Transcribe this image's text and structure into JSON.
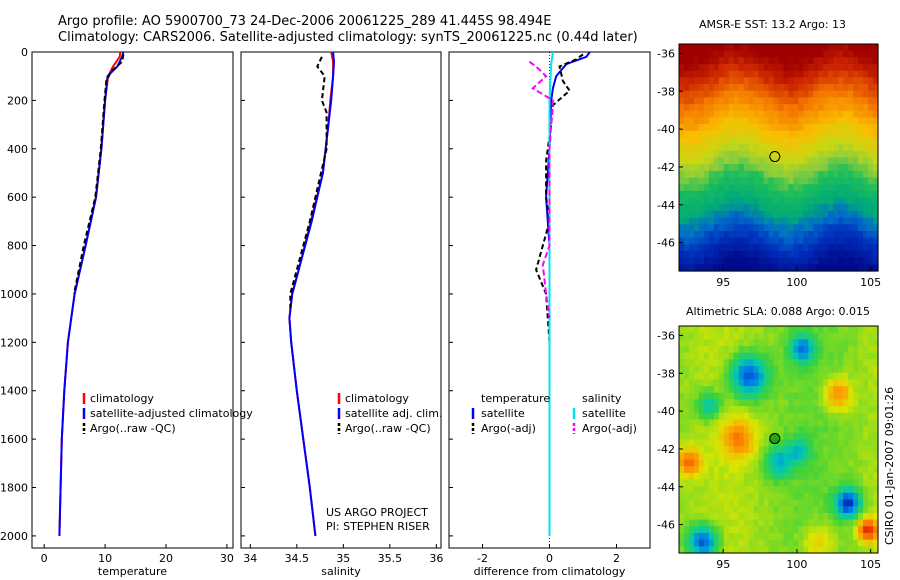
{
  "header": {
    "line1": "Argo profile: AO 5900700_73 24-Dec-2006 20061225_289 41.445S 98.494E",
    "line2": "Climatology: CARS2006. Satellite-adjusted climatology: synTS_20061225.nc (0.44d later)"
  },
  "colors": {
    "climatology": "#ff0000",
    "satellite": "#0000ff",
    "argo": "#000000",
    "sat_salinity": "#00e5ee",
    "argo_salinity": "#ff00ff"
  },
  "chart_data": [
    {
      "type": "line",
      "name": "temperature",
      "xlabel": "temperature",
      "xlim": [
        -2,
        31
      ],
      "ylim": [
        0,
        2050
      ],
      "xticks": [
        0,
        10,
        20,
        30
      ],
      "yticks": [
        0,
        200,
        400,
        600,
        800,
        1000,
        1200,
        1400,
        1600,
        1800,
        2000
      ],
      "series": [
        {
          "name": "climatology",
          "color": "#ff0000",
          "dash": "",
          "points": [
            [
              12.5,
              0
            ],
            [
              12.4,
              20
            ],
            [
              11.3,
              60
            ],
            [
              10.5,
              100
            ],
            [
              10.0,
              200
            ],
            [
              9.4,
              400
            ],
            [
              8.5,
              600
            ],
            [
              6.8,
              800
            ],
            [
              5.0,
              1000
            ],
            [
              3.9,
              1200
            ],
            [
              3.3,
              1400
            ],
            [
              2.9,
              1600
            ],
            [
              2.7,
              1800
            ],
            [
              2.5,
              2000
            ]
          ]
        },
        {
          "name": "satellite-adjusted climatology",
          "color": "#0000ff",
          "dash": "",
          "points": [
            [
              13.0,
              0
            ],
            [
              12.8,
              20
            ],
            [
              12.0,
              60
            ],
            [
              10.4,
              100
            ],
            [
              10.0,
              200
            ],
            [
              9.4,
              400
            ],
            [
              8.5,
              600
            ],
            [
              6.8,
              800
            ],
            [
              5.0,
              1000
            ],
            [
              3.9,
              1200
            ],
            [
              3.3,
              1400
            ],
            [
              2.9,
              1600
            ],
            [
              2.7,
              1800
            ],
            [
              2.5,
              2000
            ]
          ]
        },
        {
          "name": "Argo(..raw -QC)",
          "color": "#000000",
          "dash": "5,3",
          "points": [
            [
              13.0,
              10
            ],
            [
              12.8,
              40
            ],
            [
              11.0,
              80
            ],
            [
              10.2,
              120
            ],
            [
              9.9,
              200
            ],
            [
              9.3,
              400
            ],
            [
              8.4,
              600
            ],
            [
              6.5,
              800
            ],
            [
              4.9,
              1000
            ]
          ]
        }
      ],
      "legend": [
        "climatology",
        "satellite-adjusted climatology",
        "Argo(..raw -QC)"
      ]
    },
    {
      "type": "line",
      "name": "salinity",
      "xlabel": "salinity",
      "xlim": [
        33.9,
        36.05
      ],
      "ylim": [
        0,
        2050
      ],
      "xticks": [
        34,
        34.5,
        35,
        35.5,
        36
      ],
      "series": [
        {
          "name": "climatology",
          "color": "#ff0000",
          "dash": "",
          "points": [
            [
              34.87,
              0
            ],
            [
              34.89,
              40
            ],
            [
              34.89,
              100
            ],
            [
              34.86,
              200
            ],
            [
              34.84,
              300
            ],
            [
              34.78,
              500
            ],
            [
              34.65,
              700
            ],
            [
              34.52,
              900
            ],
            [
              34.45,
              1000
            ],
            [
              34.42,
              1100
            ],
            [
              34.44,
              1200
            ],
            [
              34.5,
              1400
            ],
            [
              34.57,
              1600
            ],
            [
              34.64,
              1800
            ],
            [
              34.7,
              2000
            ]
          ]
        },
        {
          "name": "satellite adj. clim.",
          "color": "#0000ff",
          "dash": "",
          "points": [
            [
              34.89,
              0
            ],
            [
              34.9,
              40
            ],
            [
              34.89,
              100
            ],
            [
              34.87,
              200
            ],
            [
              34.84,
              300
            ],
            [
              34.78,
              500
            ],
            [
              34.66,
              700
            ],
            [
              34.52,
              900
            ],
            [
              34.45,
              1000
            ],
            [
              34.42,
              1100
            ],
            [
              34.44,
              1200
            ],
            [
              34.5,
              1400
            ],
            [
              34.57,
              1600
            ],
            [
              34.64,
              1800
            ],
            [
              34.7,
              2000
            ]
          ]
        },
        {
          "name": "Argo(..raw -QC)",
          "color": "#000000",
          "dash": "5,3",
          "points": [
            [
              34.77,
              20
            ],
            [
              34.72,
              60
            ],
            [
              34.8,
              100
            ],
            [
              34.77,
              200
            ],
            [
              34.82,
              250
            ],
            [
              34.82,
              400
            ],
            [
              34.76,
              500
            ],
            [
              34.64,
              700
            ],
            [
              34.5,
              900
            ],
            [
              34.43,
              1000
            ],
            [
              34.43,
              1060
            ]
          ]
        }
      ],
      "legend": [
        "climatology",
        "satellite adj. clim.",
        "Argo(..raw -QC)"
      ],
      "annotation": [
        "US ARGO PROJECT",
        "PI: STEPHEN RISER"
      ]
    },
    {
      "type": "line",
      "name": "difference",
      "xlabel": "difference from climatology",
      "xlim": [
        -3.0,
        3.0
      ],
      "ylim": [
        0,
        2050
      ],
      "xticks": [
        -2,
        0,
        2
      ],
      "xtick_labels": [
        "-2",
        "0",
        "2"
      ],
      "series": [
        {
          "name": "temperature satellite",
          "color": "#0000ff",
          "dash": "",
          "points": [
            [
              1.2,
              0
            ],
            [
              1.1,
              20
            ],
            [
              0.5,
              50
            ],
            [
              0.2,
              100
            ],
            [
              0.1,
              150
            ],
            [
              0.05,
              200
            ],
            [
              0,
              400
            ],
            [
              -0.1,
              600
            ],
            [
              0,
              800
            ],
            [
              0,
              1000
            ],
            [
              0,
              1200
            ]
          ]
        },
        {
          "name": "temperature Argo(-adj)",
          "color": "#000000",
          "dash": "5,3",
          "points": [
            [
              1.0,
              10
            ],
            [
              0.8,
              30
            ],
            [
              0.3,
              60
            ],
            [
              0.4,
              120
            ],
            [
              0.6,
              160
            ],
            [
              0.1,
              220
            ],
            [
              0.05,
              300
            ],
            [
              -0.1,
              450
            ],
            [
              -0.1,
              600
            ],
            [
              0,
              700
            ],
            [
              -0.2,
              800
            ],
            [
              -0.4,
              900
            ],
            [
              -0.1,
              1000
            ],
            [
              0,
              1200
            ]
          ]
        },
        {
          "name": "salinity satellite",
          "color": "#00e5ee",
          "dash": "",
          "points": [
            [
              0.1,
              0
            ],
            [
              0.05,
              50
            ],
            [
              0,
              200
            ],
            [
              0,
              1000
            ],
            [
              0,
              2000
            ]
          ]
        },
        {
          "name": "salinity Argo(-adj)",
          "color": "#ff00ff",
          "dash": "6,3",
          "points": [
            [
              -0.6,
              40
            ],
            [
              -0.4,
              60
            ],
            [
              -0.1,
              100
            ],
            [
              -0.5,
              150
            ],
            [
              0.1,
              200
            ],
            [
              0,
              400
            ],
            [
              0,
              800
            ],
            [
              -0.2,
              880
            ],
            [
              -0.1,
              1000
            ],
            [
              0,
              1100
            ]
          ]
        }
      ],
      "legend_columns": [
        {
          "title": "temperature",
          "items": [
            {
              "label": "satellite",
              "color": "#0000ff"
            },
            {
              "label": "Argo(-adj)",
              "color": "#000000"
            }
          ]
        },
        {
          "title": "salinity",
          "items": [
            {
              "label": "satellite",
              "color": "#00e5ee"
            },
            {
              "label": "Argo(-adj)",
              "color": "#ff00ff"
            }
          ]
        }
      ]
    },
    {
      "type": "heatmap",
      "name": "sst_map",
      "title": "AMSR-E SST: 13.2 Argo: 13",
      "xlim": [
        92,
        105.5
      ],
      "ylim": [
        -47.5,
        -35.5
      ],
      "xticks": [
        95,
        100,
        105
      ],
      "yticks": [
        -36,
        -38,
        -40,
        -42,
        -44,
        -46
      ],
      "marker": {
        "lon": 98.5,
        "lat": -41.45
      }
    },
    {
      "type": "heatmap",
      "name": "sla_map",
      "title": "Altimetric SLA: 0.088 Argo: 0.015",
      "xlim": [
        92,
        105.5
      ],
      "ylim": [
        -47.5,
        -35.5
      ],
      "xticks": [
        95,
        100,
        105
      ],
      "yticks": [
        -36,
        -38,
        -40,
        -42,
        -44,
        -46
      ],
      "marker": {
        "lon": 98.5,
        "lat": -41.45
      }
    }
  ],
  "footer": {
    "side_stamp": "CSIRO 01-Jan-2007 09:01:26"
  }
}
